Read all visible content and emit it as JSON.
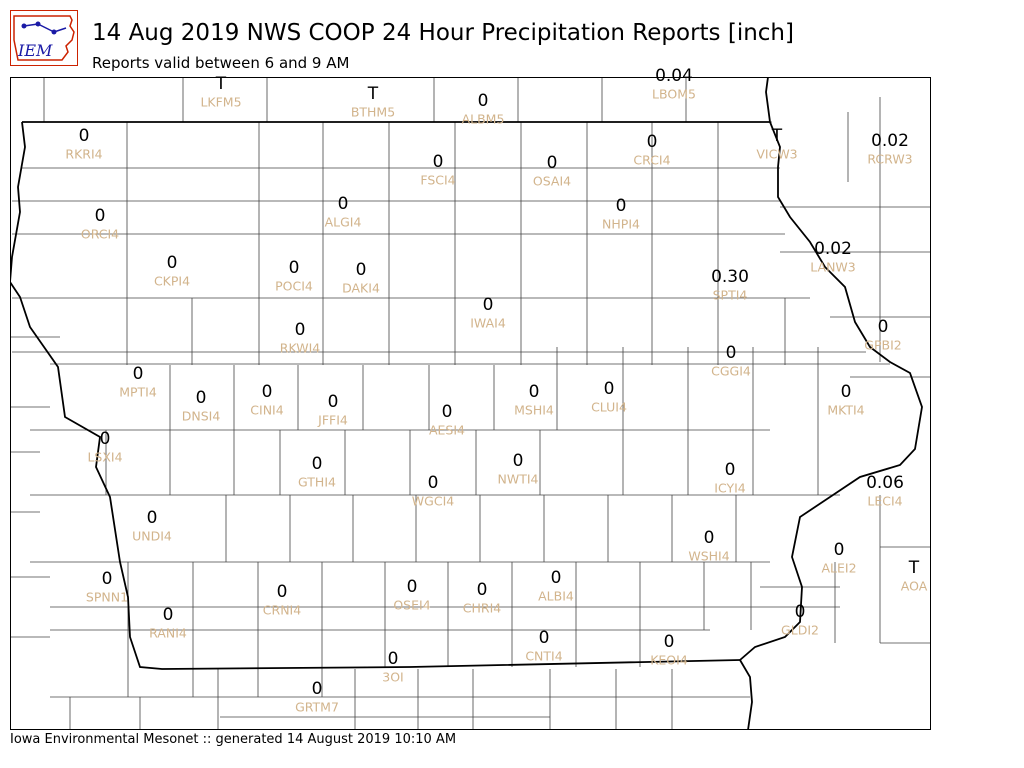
{
  "title": "14 Aug 2019 NWS COOP 24 Hour Precipitation Reports [inch]",
  "subtitle": "Reports valid between 6 and 9 AM",
  "footer": "Iowa Environmental Mesonet :: generated 14 August 2019 10:10 AM",
  "logo_text": "IEM",
  "colors": {
    "value_text": "#000000",
    "station_text": "#d2b48c",
    "county_lines": "#444444",
    "state_lines": "#000000",
    "logo_blue": "#1a1aa6",
    "logo_red": "#cc2200"
  },
  "stations": [
    {
      "id": "LKFM5",
      "value": "T"
    },
    {
      "id": "BTHM5",
      "value": "T"
    },
    {
      "id": "ALBM5",
      "value": "0"
    },
    {
      "id": "LBOM5",
      "value": "0.04"
    },
    {
      "id": "RKRI4",
      "value": "0"
    },
    {
      "id": "FSCI4",
      "value": "0"
    },
    {
      "id": "OSAI4",
      "value": "0"
    },
    {
      "id": "CRCI4",
      "value": "0"
    },
    {
      "id": "VICW3",
      "value": "T"
    },
    {
      "id": "RCRW3",
      "value": "0.02"
    },
    {
      "id": "ORCI4",
      "value": "0"
    },
    {
      "id": "ALGI4",
      "value": "0"
    },
    {
      "id": "NHPI4",
      "value": "0"
    },
    {
      "id": "LANW3",
      "value": "0.02"
    },
    {
      "id": "CKPI4",
      "value": "0"
    },
    {
      "id": "POCI4",
      "value": "0"
    },
    {
      "id": "DAKI4",
      "value": "0"
    },
    {
      "id": "SPTI4",
      "value": "0.30"
    },
    {
      "id": "IWAI4",
      "value": "0"
    },
    {
      "id": "RKWI4",
      "value": "0"
    },
    {
      "id": "GPBI2",
      "value": "0"
    },
    {
      "id": "CGGI4",
      "value": "0"
    },
    {
      "id": "MPTI4",
      "value": "0"
    },
    {
      "id": "DNSI4",
      "value": "0"
    },
    {
      "id": "CINI4",
      "value": "0"
    },
    {
      "id": "JFFI4",
      "value": "0"
    },
    {
      "id": "AESI4",
      "value": "0"
    },
    {
      "id": "MSHI4",
      "value": "0"
    },
    {
      "id": "CLUI4",
      "value": "0"
    },
    {
      "id": "MKTI4",
      "value": "0"
    },
    {
      "id": "LSXI4",
      "value": "0"
    },
    {
      "id": "GTHI4",
      "value": "0"
    },
    {
      "id": "NWTI4",
      "value": "0"
    },
    {
      "id": "WGCI4",
      "value": "0"
    },
    {
      "id": "ICYI4",
      "value": "0"
    },
    {
      "id": "LECI4",
      "value": "0.06"
    },
    {
      "id": "UNDI4",
      "value": "0"
    },
    {
      "id": "WSHI4",
      "value": "0"
    },
    {
      "id": "ALEI2",
      "value": "0"
    },
    {
      "id": "AOA",
      "value": "T"
    },
    {
      "id": "SPNN1",
      "value": "0"
    },
    {
      "id": "RANI4",
      "value": "0"
    },
    {
      "id": "CRNI4",
      "value": "0"
    },
    {
      "id": "OSEI4",
      "value": "0"
    },
    {
      "id": "CHRI4",
      "value": "0"
    },
    {
      "id": "ALBI4",
      "value": "0"
    },
    {
      "id": "CNTI4",
      "value": "0"
    },
    {
      "id": "KEOI4",
      "value": "0"
    },
    {
      "id": "GLDI2",
      "value": "0"
    },
    {
      "id": "3OI",
      "value": "0"
    },
    {
      "id": "GRTM7",
      "value": "0"
    }
  ]
}
